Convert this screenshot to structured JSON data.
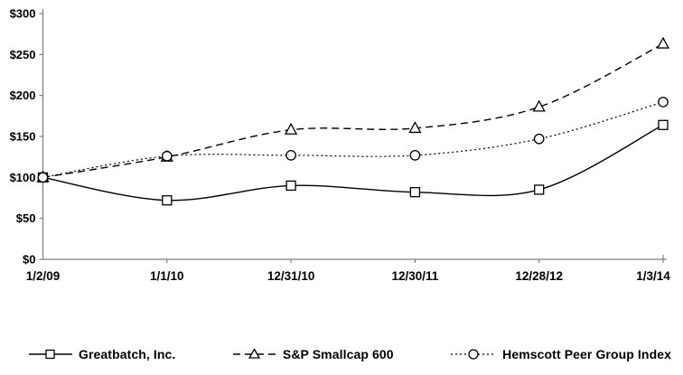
{
  "chart_data": {
    "type": "line",
    "title": "",
    "xlabel": "",
    "ylabel": "",
    "x": [
      "1/2/09",
      "1/1/10",
      "12/31/10",
      "12/30/11",
      "12/28/12",
      "1/3/14"
    ],
    "series": [
      {
        "name": "Greatbatch, Inc.",
        "marker": "square",
        "line_style": "solid",
        "values": [
          100,
          72,
          90,
          82,
          85,
          164
        ]
      },
      {
        "name": "S&P Smallcap 600",
        "marker": "triangle",
        "line_style": "dashed",
        "values": [
          100,
          125,
          158,
          160,
          186,
          263
        ]
      },
      {
        "name": "Hemscott Peer Group Index",
        "marker": "circle",
        "line_style": "dotted",
        "values": [
          100,
          126,
          127,
          127,
          147,
          192
        ]
      }
    ],
    "y_ticks": [
      "$300",
      "$250",
      "$200",
      "$150",
      "$100",
      "$50",
      "$0"
    ],
    "y_tick_values": [
      300,
      250,
      200,
      150,
      100,
      50,
      0
    ],
    "ylim": [
      0,
      300
    ],
    "grid": false,
    "legend_position": "bottom",
    "line_color": "#000000",
    "axis_color": "#808080",
    "text_color": "#000000",
    "marker_fill": "#ffffff",
    "smoothed_lines": true
  }
}
